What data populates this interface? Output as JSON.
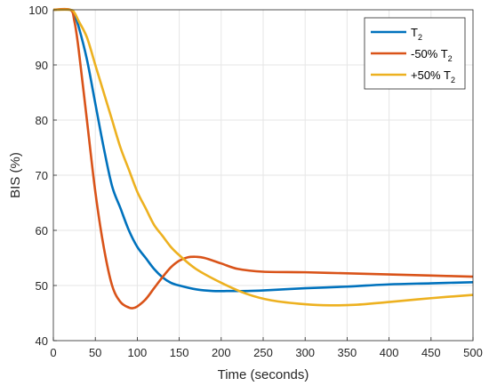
{
  "chart_data": {
    "type": "line",
    "title": "",
    "xlabel": "Time (seconds)",
    "ylabel": "BIS (%)",
    "xlim": [
      0,
      500
    ],
    "ylim": [
      40,
      100
    ],
    "xticks": [
      0,
      50,
      100,
      150,
      200,
      250,
      300,
      350,
      400,
      450,
      500
    ],
    "yticks": [
      40,
      50,
      60,
      70,
      80,
      90,
      100
    ],
    "grid": true,
    "legend_position": "top-right",
    "series": [
      {
        "name": "T",
        "name_subscript": "2",
        "color": "#0072BD",
        "x": [
          0,
          20,
          25,
          30,
          40,
          50,
          60,
          70,
          80,
          90,
          100,
          110,
          120,
          130,
          140,
          150,
          170,
          190,
          210,
          230,
          250,
          300,
          350,
          400,
          450,
          500
        ],
        "y": [
          100,
          100,
          99,
          97,
          91,
          83,
          75,
          68,
          64,
          60,
          57,
          55,
          53,
          51.5,
          50.5,
          50,
          49.3,
          49,
          49,
          49,
          49.1,
          49.5,
          49.8,
          50.2,
          50.4,
          50.6
        ]
      },
      {
        "name": "-50% T",
        "name_subscript": "2",
        "color": "#D95319",
        "x": [
          0,
          20,
          25,
          30,
          40,
          50,
          60,
          70,
          80,
          90,
          95,
          100,
          110,
          120,
          130,
          140,
          150,
          160,
          170,
          180,
          200,
          220,
          250,
          300,
          350,
          400,
          450,
          500
        ],
        "y": [
          100,
          100,
          98,
          93,
          80,
          67,
          57,
          50,
          47,
          46,
          45.9,
          46.2,
          47.5,
          49.5,
          51.5,
          53.3,
          54.5,
          55.1,
          55.2,
          55,
          54,
          53,
          52.5,
          52.4,
          52.2,
          52,
          51.8,
          51.6
        ]
      },
      {
        "name": "+50% T",
        "name_subscript": "2",
        "color": "#EDB120",
        "x": [
          0,
          20,
          25,
          30,
          40,
          50,
          60,
          70,
          80,
          90,
          100,
          110,
          120,
          130,
          140,
          150,
          170,
          200,
          230,
          260,
          300,
          330,
          360,
          400,
          450,
          500
        ],
        "y": [
          100,
          100,
          99.5,
          98,
          95,
          90,
          85,
          80,
          75,
          71,
          67,
          64,
          61,
          59,
          57,
          55.5,
          53,
          50.5,
          48.5,
          47.3,
          46.6,
          46.4,
          46.5,
          47,
          47.7,
          48.3
        ]
      }
    ]
  }
}
